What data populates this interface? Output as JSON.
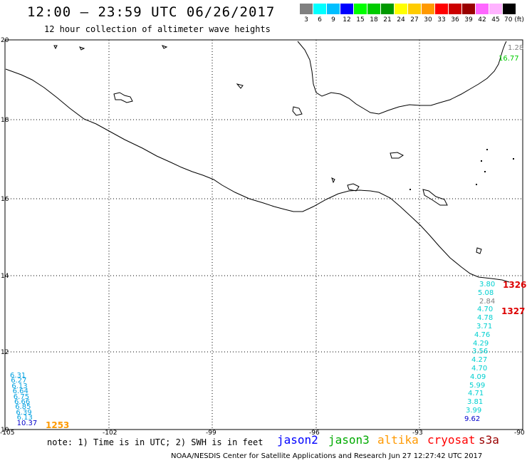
{
  "title": "12:00 — 23:59 UTC 06/26/2017",
  "subtitle": "12 hour collection of altimeter wave heights",
  "scale": {
    "labels": [
      "3",
      "6",
      "9",
      "12",
      "15",
      "18",
      "21",
      "24",
      "27",
      "30",
      "33",
      "36",
      "39",
      "42",
      "45",
      "70 (ft)"
    ],
    "colors": [
      "#808080",
      "#00ffff",
      "#00bfff",
      "#0000ff",
      "#00ff00",
      "#00cc00",
      "#009900",
      "#ffff00",
      "#ffcc00",
      "#ff9900",
      "#ff0000",
      "#cc0000",
      "#990000",
      "#ff66ff",
      "#ffb3ff",
      "#000000"
    ]
  },
  "lat_labels": [
    "20",
    "18",
    "16",
    "14",
    "12",
    "10"
  ],
  "lon_labels": [
    "-105",
    "-102",
    "-99",
    "-96",
    "-93",
    "-90"
  ],
  "wave_heights": {
    "east_top": [
      {
        "value": "1.28",
        "color": "#808080"
      },
      {
        "value": "16.77",
        "color": "#00cc00"
      }
    ],
    "east_track": [
      {
        "value": "3.80",
        "color": "#00d0d0"
      },
      {
        "value": "5.08",
        "color": "#00d0d0"
      },
      {
        "value": "2.84",
        "color": "#808080"
      },
      {
        "value": "4.70",
        "color": "#00d0d0"
      },
      {
        "value": "4.78",
        "color": "#00d0d0"
      },
      {
        "value": "3.71",
        "color": "#00d0d0"
      },
      {
        "value": "4.76",
        "color": "#00d0d0"
      },
      {
        "value": "4.29",
        "color": "#00d0d0"
      },
      {
        "value": "3.56",
        "color": "#00d0d0"
      },
      {
        "value": "4.27",
        "color": "#00d0d0"
      },
      {
        "value": "4.70",
        "color": "#00d0d0"
      },
      {
        "value": "4.09",
        "color": "#00d0d0"
      },
      {
        "value": "5.99",
        "color": "#00d0d0"
      },
      {
        "value": "4.71",
        "color": "#00d0d0"
      },
      {
        "value": "3.81",
        "color": "#00d0d0"
      },
      {
        "value": "3.99",
        "color": "#00d0d0"
      },
      {
        "value": "9.62",
        "color": "#0000cc"
      }
    ],
    "east_red": [
      "1326",
      "1327"
    ],
    "west_track": [
      {
        "value": "6.31",
        "color": "#00a0e0"
      },
      {
        "value": "6.27",
        "color": "#00a0e0"
      },
      {
        "value": "6.13",
        "color": "#00a0e0"
      },
      {
        "value": "6.64",
        "color": "#00a0e0"
      },
      {
        "value": "6.75",
        "color": "#00a0e0"
      },
      {
        "value": "6.66",
        "color": "#00a0e0"
      },
      {
        "value": "6.85",
        "color": "#00a0e0"
      },
      {
        "value": "6.39",
        "color": "#00a0e0"
      },
      {
        "value": "6.13",
        "color": "#00a0e0"
      },
      {
        "value": "10.37",
        "color": "#0000cc"
      }
    ],
    "west_orange": "1253"
  },
  "note": "note: 1) Time is in UTC; 2) SWH is in feet",
  "satellites": [
    {
      "name": "jason2",
      "color": "#0000ff"
    },
    {
      "name": "jason3",
      "color": "#00aa00"
    },
    {
      "name": "altika",
      "color": "#ff9900"
    },
    {
      "name": "cryosat",
      "color": "#ff0000"
    },
    {
      "name": "s3a",
      "color": "#990000"
    }
  ],
  "credit": "NOAA/NESDIS Center for Satellite Applications and Research    Jun 27 12:27:42 UTC 2017"
}
